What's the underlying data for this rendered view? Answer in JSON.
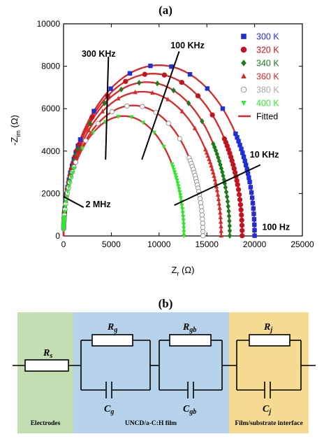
{
  "panels": {
    "a_label": "(a)",
    "b_label": "(b)"
  },
  "chart_data": {
    "type": "scatter",
    "title": "",
    "xlabel_main": "Z",
    "xlabel_sub": "r",
    "xlabel_unit": " (Ω)",
    "ylabel_prefix": "-Z",
    "ylabel_sub": "im",
    "ylabel_unit": " (Ω)",
    "xlim": [
      0,
      25000
    ],
    "ylim": [
      0,
      10000
    ],
    "xticks": [
      0,
      5000,
      10000,
      15000,
      20000,
      25000
    ],
    "xtick_labels": [
      "0",
      "5000",
      "10000",
      "15000",
      "20000",
      "25000"
    ],
    "yticks": [
      0,
      2000,
      4000,
      6000,
      8000,
      10000
    ],
    "ytick_labels": [
      "0",
      "2000",
      "4000",
      "6000",
      "8000",
      "10000"
    ],
    "legend_position": "top-right",
    "fitted_label": "Fitted",
    "fitted_color": "#d42a2a",
    "series": [
      {
        "name": "300 K",
        "marker": "square",
        "color": "#1f2fd6",
        "R": 20000,
        "Ymax": 8050
      },
      {
        "name": "320 K",
        "marker": "circle",
        "color": "#c0141e",
        "R": 18700,
        "Ymax": 7650
      },
      {
        "name": "340 K",
        "marker": "diamond",
        "color": "#1d7a1d",
        "R": 17400,
        "Ymax": 7250
      },
      {
        "name": "360 K",
        "marker": "triangle",
        "color": "#d42a2a",
        "R": 16500,
        "Ymax": 6800
      },
      {
        "name": "380 K",
        "marker": "open-circle",
        "color": "#a8a8a8",
        "R": 14600,
        "Ymax": 6150
      },
      {
        "name": "400 K",
        "marker": "triangle-down",
        "color": "#33e833",
        "R": 12600,
        "Ymax": 5650
      }
    ],
    "annotations": [
      {
        "text": "300 KHz",
        "x": 1900,
        "y": 8450,
        "line_from": [
          4400,
          3600
        ],
        "line_to": [
          4700,
          8450
        ]
      },
      {
        "text": "100 KHz",
        "x": 11200,
        "y": 8850,
        "line_from": [
          8200,
          3600
        ],
        "line_to": [
          12100,
          8700
        ]
      },
      {
        "text": "10 KHz",
        "x": 19500,
        "y": 3700,
        "line_from": [
          11600,
          1450
        ],
        "line_to": [
          20600,
          3350
        ]
      },
      {
        "text": "2 MHz",
        "x": 2300,
        "y": 1350,
        "line_from": [
          0,
          1850
        ],
        "line_to": [
          2100,
          1350
        ]
      },
      {
        "text": "100 Hz",
        "x": 20800,
        "y": 280,
        "line_from": null,
        "line_to": null
      }
    ]
  },
  "circuit": {
    "components": {
      "rs": {
        "main": "R",
        "sub": "s"
      },
      "rg": {
        "main": "R",
        "sub": "g"
      },
      "rgb": {
        "main": "R",
        "sub": "gb"
      },
      "rj": {
        "main": "R",
        "sub": "j"
      },
      "cg": {
        "main": "C",
        "sub": "g"
      },
      "cgb": {
        "main": "C",
        "sub": "gb"
      },
      "cj": {
        "main": "C",
        "sub": "j"
      }
    },
    "regions": [
      {
        "label": "Electrodes",
        "color": "#c3deb0"
      },
      {
        "label": "UNCD/a-C:H film",
        "color": "#b7d3ec"
      },
      {
        "label": "Film/substrate interface",
        "color": "#f6dc92"
      }
    ]
  }
}
